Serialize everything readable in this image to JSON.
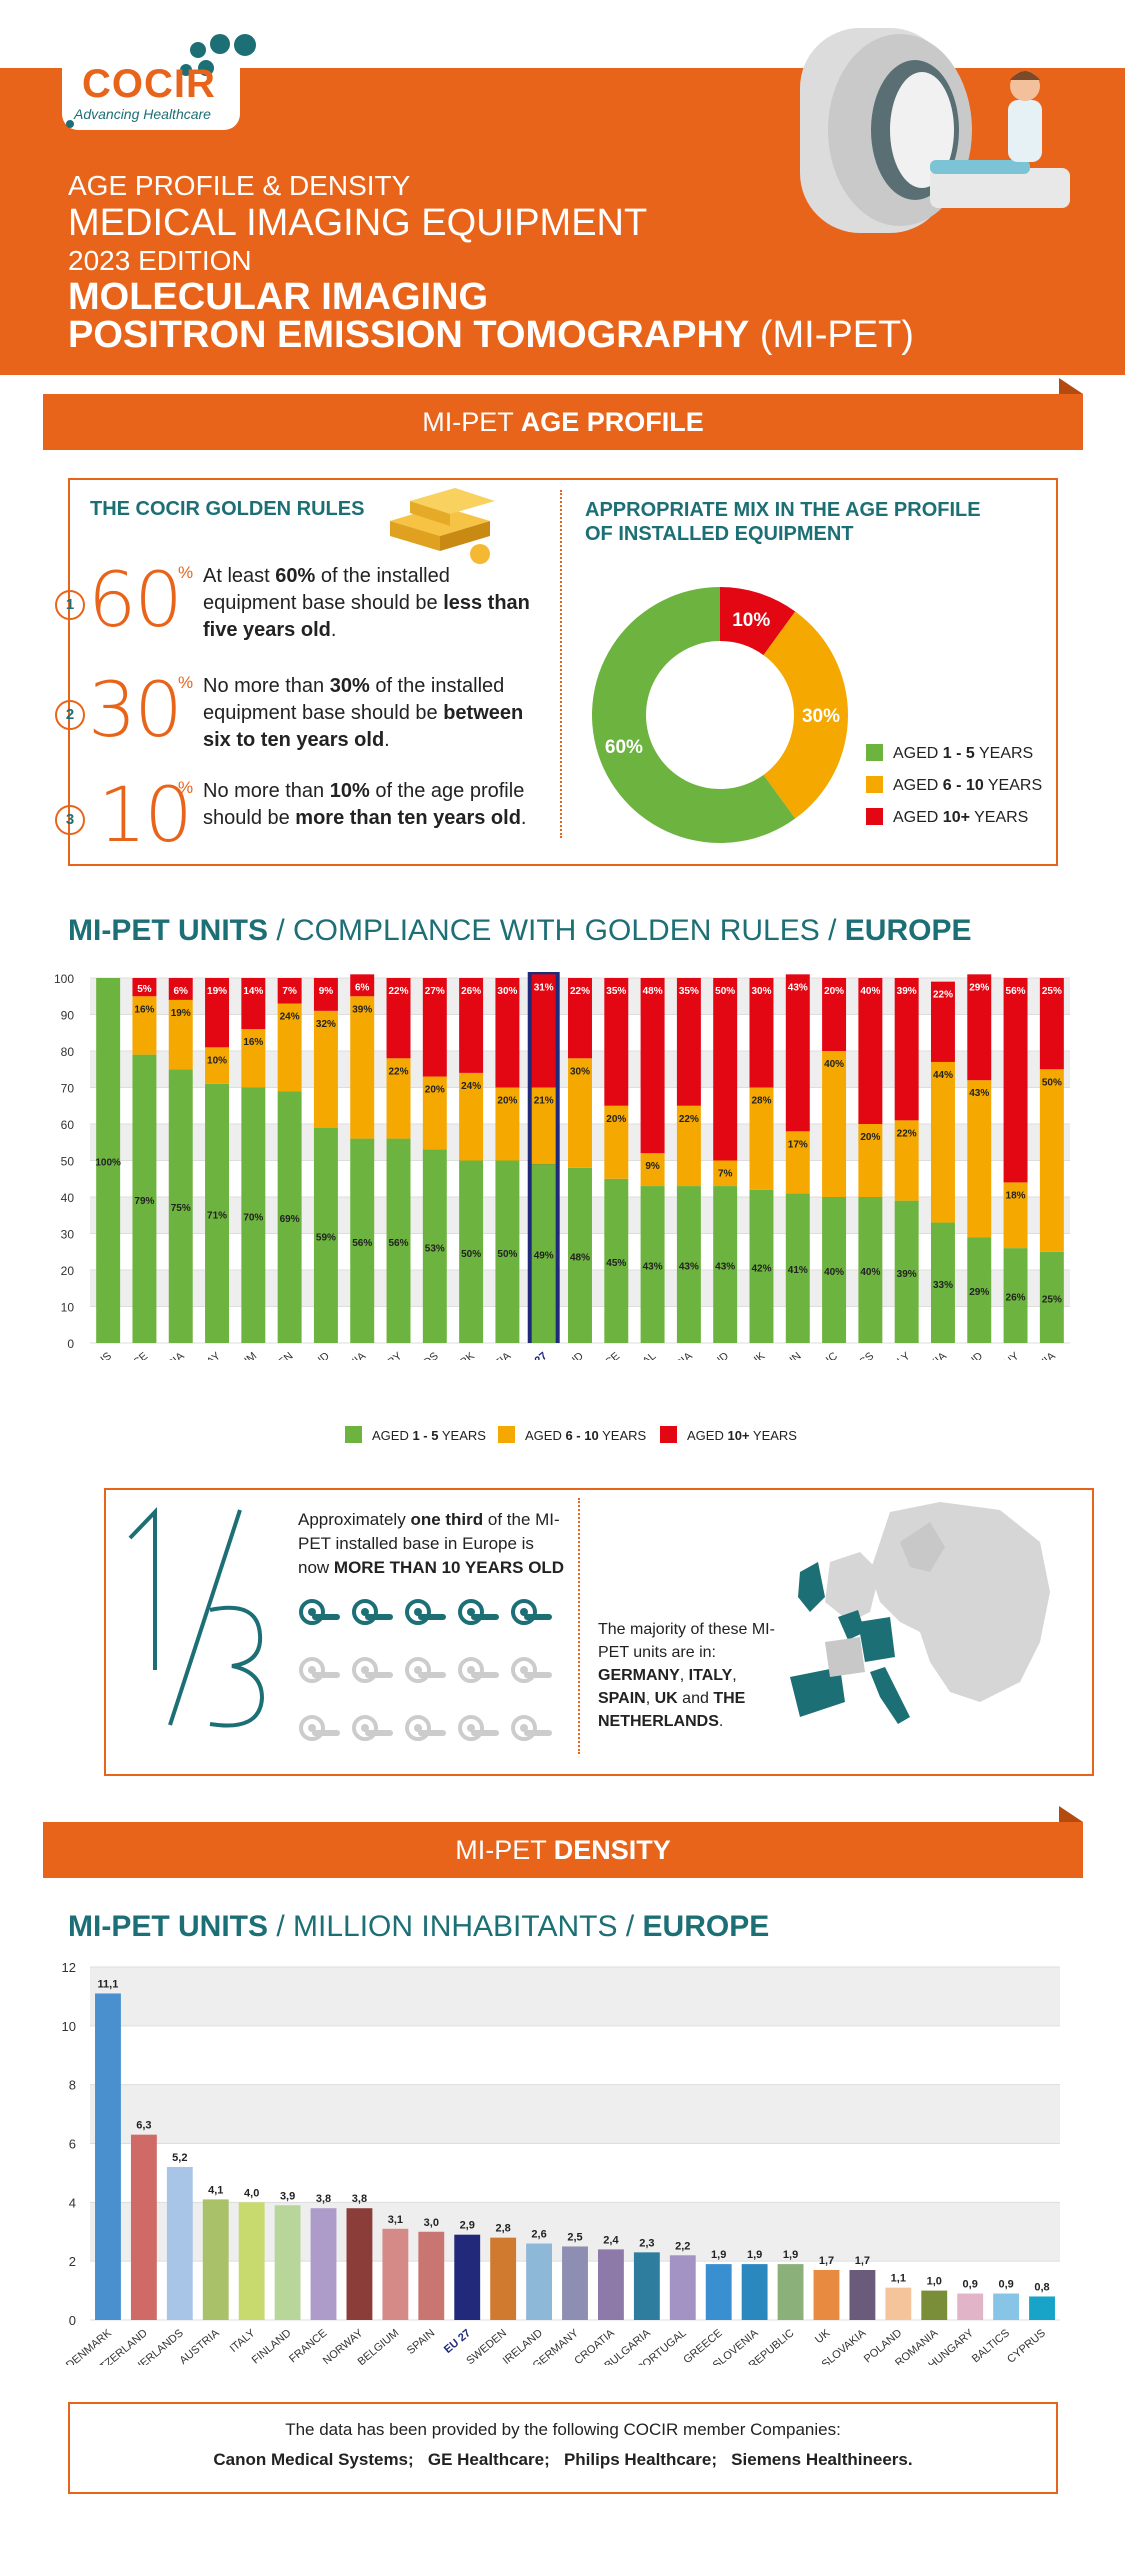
{
  "logo": {
    "name": "COCIR",
    "tagline": "Advancing Healthcare"
  },
  "header": {
    "line1": "AGE PROFILE & DENSITY",
    "line2": "MEDICAL IMAGING EQUIPMENT",
    "line3": "2023 EDITION",
    "line4": "MOLECULAR IMAGING",
    "line5_bold": "POSITRON EMISSION TOMOGRAPHY",
    "line5_rest": " (MI-PET)"
  },
  "age_banner": {
    "light": "MI-PET ",
    "bold": "AGE PROFILE"
  },
  "golden_rules": {
    "title": "THE COCIR GOLDEN RULES",
    "rules": [
      {
        "num": "1",
        "pct": "60",
        "sign": "%",
        "text_parts": [
          "At least ",
          "60%",
          " of the installed equipment base should be ",
          "less than five years old",
          "."
        ]
      },
      {
        "num": "2",
        "pct": "30",
        "sign": "%",
        "text_parts": [
          "No more than ",
          "30%",
          " of the installed equipment base should be ",
          "between six to ten years old",
          "."
        ]
      },
      {
        "num": "3",
        "pct": "10",
        "sign": "%",
        "text_parts": [
          "No more than ",
          "10%",
          " of the age profile should be ",
          "more than ten years old",
          "."
        ]
      }
    ]
  },
  "mix": {
    "title_line1": "APPROPRIATE MIX IN THE AGE PROFILE",
    "title_line2": "OF INSTALLED EQUIPMENT",
    "legend": [
      {
        "prefix": "AGED ",
        "bold": "1 - 5",
        "suffix": " YEARS",
        "color": "#6db33f"
      },
      {
        "prefix": "AGED ",
        "bold": "6 - 10",
        "suffix": " YEARS",
        "color": "#f5a800"
      },
      {
        "prefix": "AGED ",
        "bold": "10+",
        "suffix": " YEARS",
        "color": "#e30613"
      }
    ]
  },
  "compliance_title": {
    "bold1": "MI-PET UNITS",
    "light": " / COMPLIANCE WITH GOLDEN RULES / ",
    "bold2": "EUROPE"
  },
  "compliance_legend": [
    {
      "prefix": "AGED ",
      "bold": "1 - 5",
      "suffix": " YEARS",
      "color": "#6db33f"
    },
    {
      "prefix": "AGED ",
      "bold": "6 - 10",
      "suffix": " YEARS",
      "color": "#f5a800"
    },
    {
      "prefix": "AGED ",
      "bold": "10+",
      "suffix": " YEARS",
      "color": "#e30613"
    }
  ],
  "third": {
    "big": "1/3",
    "text_parts": [
      "Approximately ",
      "one third",
      " of the MI-PET installed base in Europe is now ",
      "MORE THAN 10 YEARS OLD"
    ],
    "majority_parts": [
      "The majority of these MI-PET units are in: ",
      "GERMANY",
      ", ",
      "ITALY",
      ", ",
      "SPAIN",
      ", ",
      "UK",
      " and ",
      "THE NETHERLANDS",
      "."
    ]
  },
  "density_banner": {
    "light": "MI-PET ",
    "bold": "DENSITY"
  },
  "density_title": {
    "bold1": "MI-PET UNITS",
    "light": " / MILLION INHABITANTS / ",
    "bold2": "EUROPE"
  },
  "footer": {
    "line1": "The data has been provided by the following COCIR member Companies:",
    "companies": [
      "Canon Medical Systems",
      "GE Healthcare",
      "Philips Healthcare",
      "Siemens Healthineers."
    ]
  },
  "colors": {
    "orange": "#e8641a",
    "teal": "#1d6f76",
    "green": "#6db33f",
    "amber": "#f5a800",
    "red": "#e30613",
    "eu_blue": "#1f2a7a"
  },
  "chart_data": [
    {
      "type": "pie",
      "categories": [
        "AGED 1 - 5 YEARS",
        "AGED 6 - 10 YEARS",
        "AGED 10+ YEARS"
      ],
      "values": [
        60,
        30,
        10
      ],
      "labels": [
        "60%",
        "30%",
        "10%"
      ],
      "colors": [
        "#6db33f",
        "#f5a800",
        "#e30613"
      ]
    },
    {
      "type": "bar",
      "stacked": true,
      "categories": [
        "CYPRUS",
        "FRANCE",
        "BULGARIA",
        "NORWAY",
        "BELGIUM",
        "SWEDEN",
        "FINLAND",
        "ROMANIA",
        "HUNGARY",
        "NETHERLANDS",
        "DENMARK",
        "CROATIA",
        "EU 27",
        "SWITZERLAND",
        "GREECE",
        "PORTUGAL",
        "AUSTRIA",
        "IRELAND",
        "UK",
        "SPAIN",
        "CZECH REPUBLIC",
        "BALTICS",
        "ITALY",
        "SLOVAKIA",
        "POLAND",
        "GERMANY",
        "SLOVENIA"
      ],
      "series": [
        {
          "name": "AGED 1 - 5 YEARS",
          "color": "#6db33f",
          "values": [
            100,
            79,
            75,
            71,
            70,
            69,
            59,
            56,
            56,
            53,
            50,
            50,
            49,
            48,
            45,
            43,
            43,
            43,
            42,
            41,
            40,
            40,
            39,
            33,
            29,
            26,
            25
          ],
          "labels": [
            "100%",
            "79%",
            "75%",
            "71%",
            "70%",
            "69%",
            "59%",
            "56%",
            "56%",
            "53%",
            "50%",
            "50%",
            "49%",
            "48%",
            "45%",
            "43%",
            "43%",
            "43%",
            "42%",
            "41%",
            "40%",
            "40%",
            "39%",
            "33%",
            "29%",
            "26%",
            "25%"
          ]
        },
        {
          "name": "AGED 6 - 10 YEARS",
          "color": "#f5a800",
          "values": [
            0,
            16,
            19,
            10,
            16,
            24,
            32,
            39,
            22,
            20,
            24,
            20,
            21,
            30,
            20,
            9,
            22,
            7,
            28,
            17,
            40,
            20,
            22,
            44,
            43,
            18,
            50
          ],
          "labels": [
            "",
            "16%",
            "19%",
            "10%",
            "16%",
            "24%",
            "32%",
            "39%",
            "22%",
            "20%",
            "24%",
            "20%",
            "21%",
            "30%",
            "20%",
            "9%",
            "22%",
            "7%",
            "28%",
            "17%",
            "40%",
            "20%",
            "22%",
            "44%",
            "43%",
            "18%",
            "50%"
          ]
        },
        {
          "name": "AGED 10+ YEARS",
          "color": "#e30613",
          "values": [
            0,
            5,
            6,
            19,
            14,
            7,
            9,
            6,
            22,
            27,
            26,
            30,
            31,
            22,
            35,
            48,
            35,
            50,
            30,
            43,
            20,
            40,
            39,
            22,
            29,
            56,
            25
          ],
          "labels": [
            "",
            "5%",
            "6%",
            "19%",
            "14%",
            "7%",
            "9%",
            "6%",
            "22%",
            "27%",
            "26%",
            "30%",
            "31%",
            "22%",
            "35%",
            "48%",
            "35%",
            "50%",
            "30%",
            "43%",
            "20%",
            "40%",
            "39%",
            "22%",
            "29%",
            "56%",
            "25%"
          ]
        }
      ],
      "highlight": "EU 27",
      "yticks": [
        "0",
        "10",
        "20",
        "30",
        "40",
        "50",
        "60",
        "70",
        "80",
        "90",
        "100"
      ],
      "ylim": [
        0,
        100
      ],
      "legend_position": "bottom"
    },
    {
      "type": "bar",
      "categories": [
        "DENMARK",
        "SWITZERLAND",
        "NETHERLANDS",
        "AUSTRIA",
        "ITALY",
        "FINLAND",
        "FRANCE",
        "NORWAY",
        "BELGIUM",
        "SPAIN",
        "EU 27",
        "SWEDEN",
        "IRELAND",
        "GERMANY",
        "CROATIA",
        "BULGARIA",
        "PORTUGAL",
        "GREECE",
        "SLOVENIA",
        "CZECH REPUBLIC",
        "UK",
        "SLOVAKIA",
        "POLAND",
        "ROMANIA",
        "HUNGARY",
        "BALTICS",
        "CYPRUS"
      ],
      "values": [
        11.1,
        6.3,
        5.2,
        4.1,
        4.0,
        3.9,
        3.8,
        3.8,
        3.1,
        3.0,
        2.9,
        2.8,
        2.6,
        2.5,
        2.4,
        2.3,
        2.2,
        1.9,
        1.9,
        1.9,
        1.7,
        1.7,
        1.1,
        1.0,
        0.9,
        0.9,
        0.8
      ],
      "labels": [
        "11,1",
        "6,3",
        "5,2",
        "4,1",
        "4,0",
        "3,9",
        "3,8",
        "3,8",
        "3,1",
        "3,0",
        "2,9",
        "2,8",
        "2,6",
        "2,5",
        "2,4",
        "2,3",
        "2,2",
        "1,9",
        "1,9",
        "1,9",
        "1,7",
        "1,7",
        "1,1",
        "1,0",
        "0,9",
        "0,9",
        "0,8"
      ],
      "colors": [
        "#4a90cf",
        "#cf6a66",
        "#a8c4e6",
        "#a9c26a",
        "#c8d96d",
        "#b9d69a",
        "#ad9cca",
        "#8b3d3a",
        "#d68a88",
        "#c97672",
        "#22297a",
        "#d07a30",
        "#8eb8d8",
        "#8e8eb3",
        "#8e7aa8",
        "#2e7d9e",
        "#a392c4",
        "#3a8fd0",
        "#2a88bf",
        "#8cb07a",
        "#e88a40",
        "#6b5b7a",
        "#f5c49a",
        "#7a8e3a",
        "#e2b4c8",
        "#88c4e6",
        "#18a4c8"
      ],
      "yticks": [
        "0",
        "2",
        "4",
        "6",
        "8",
        "10",
        "12"
      ],
      "ylim": [
        0,
        12
      ]
    }
  ]
}
